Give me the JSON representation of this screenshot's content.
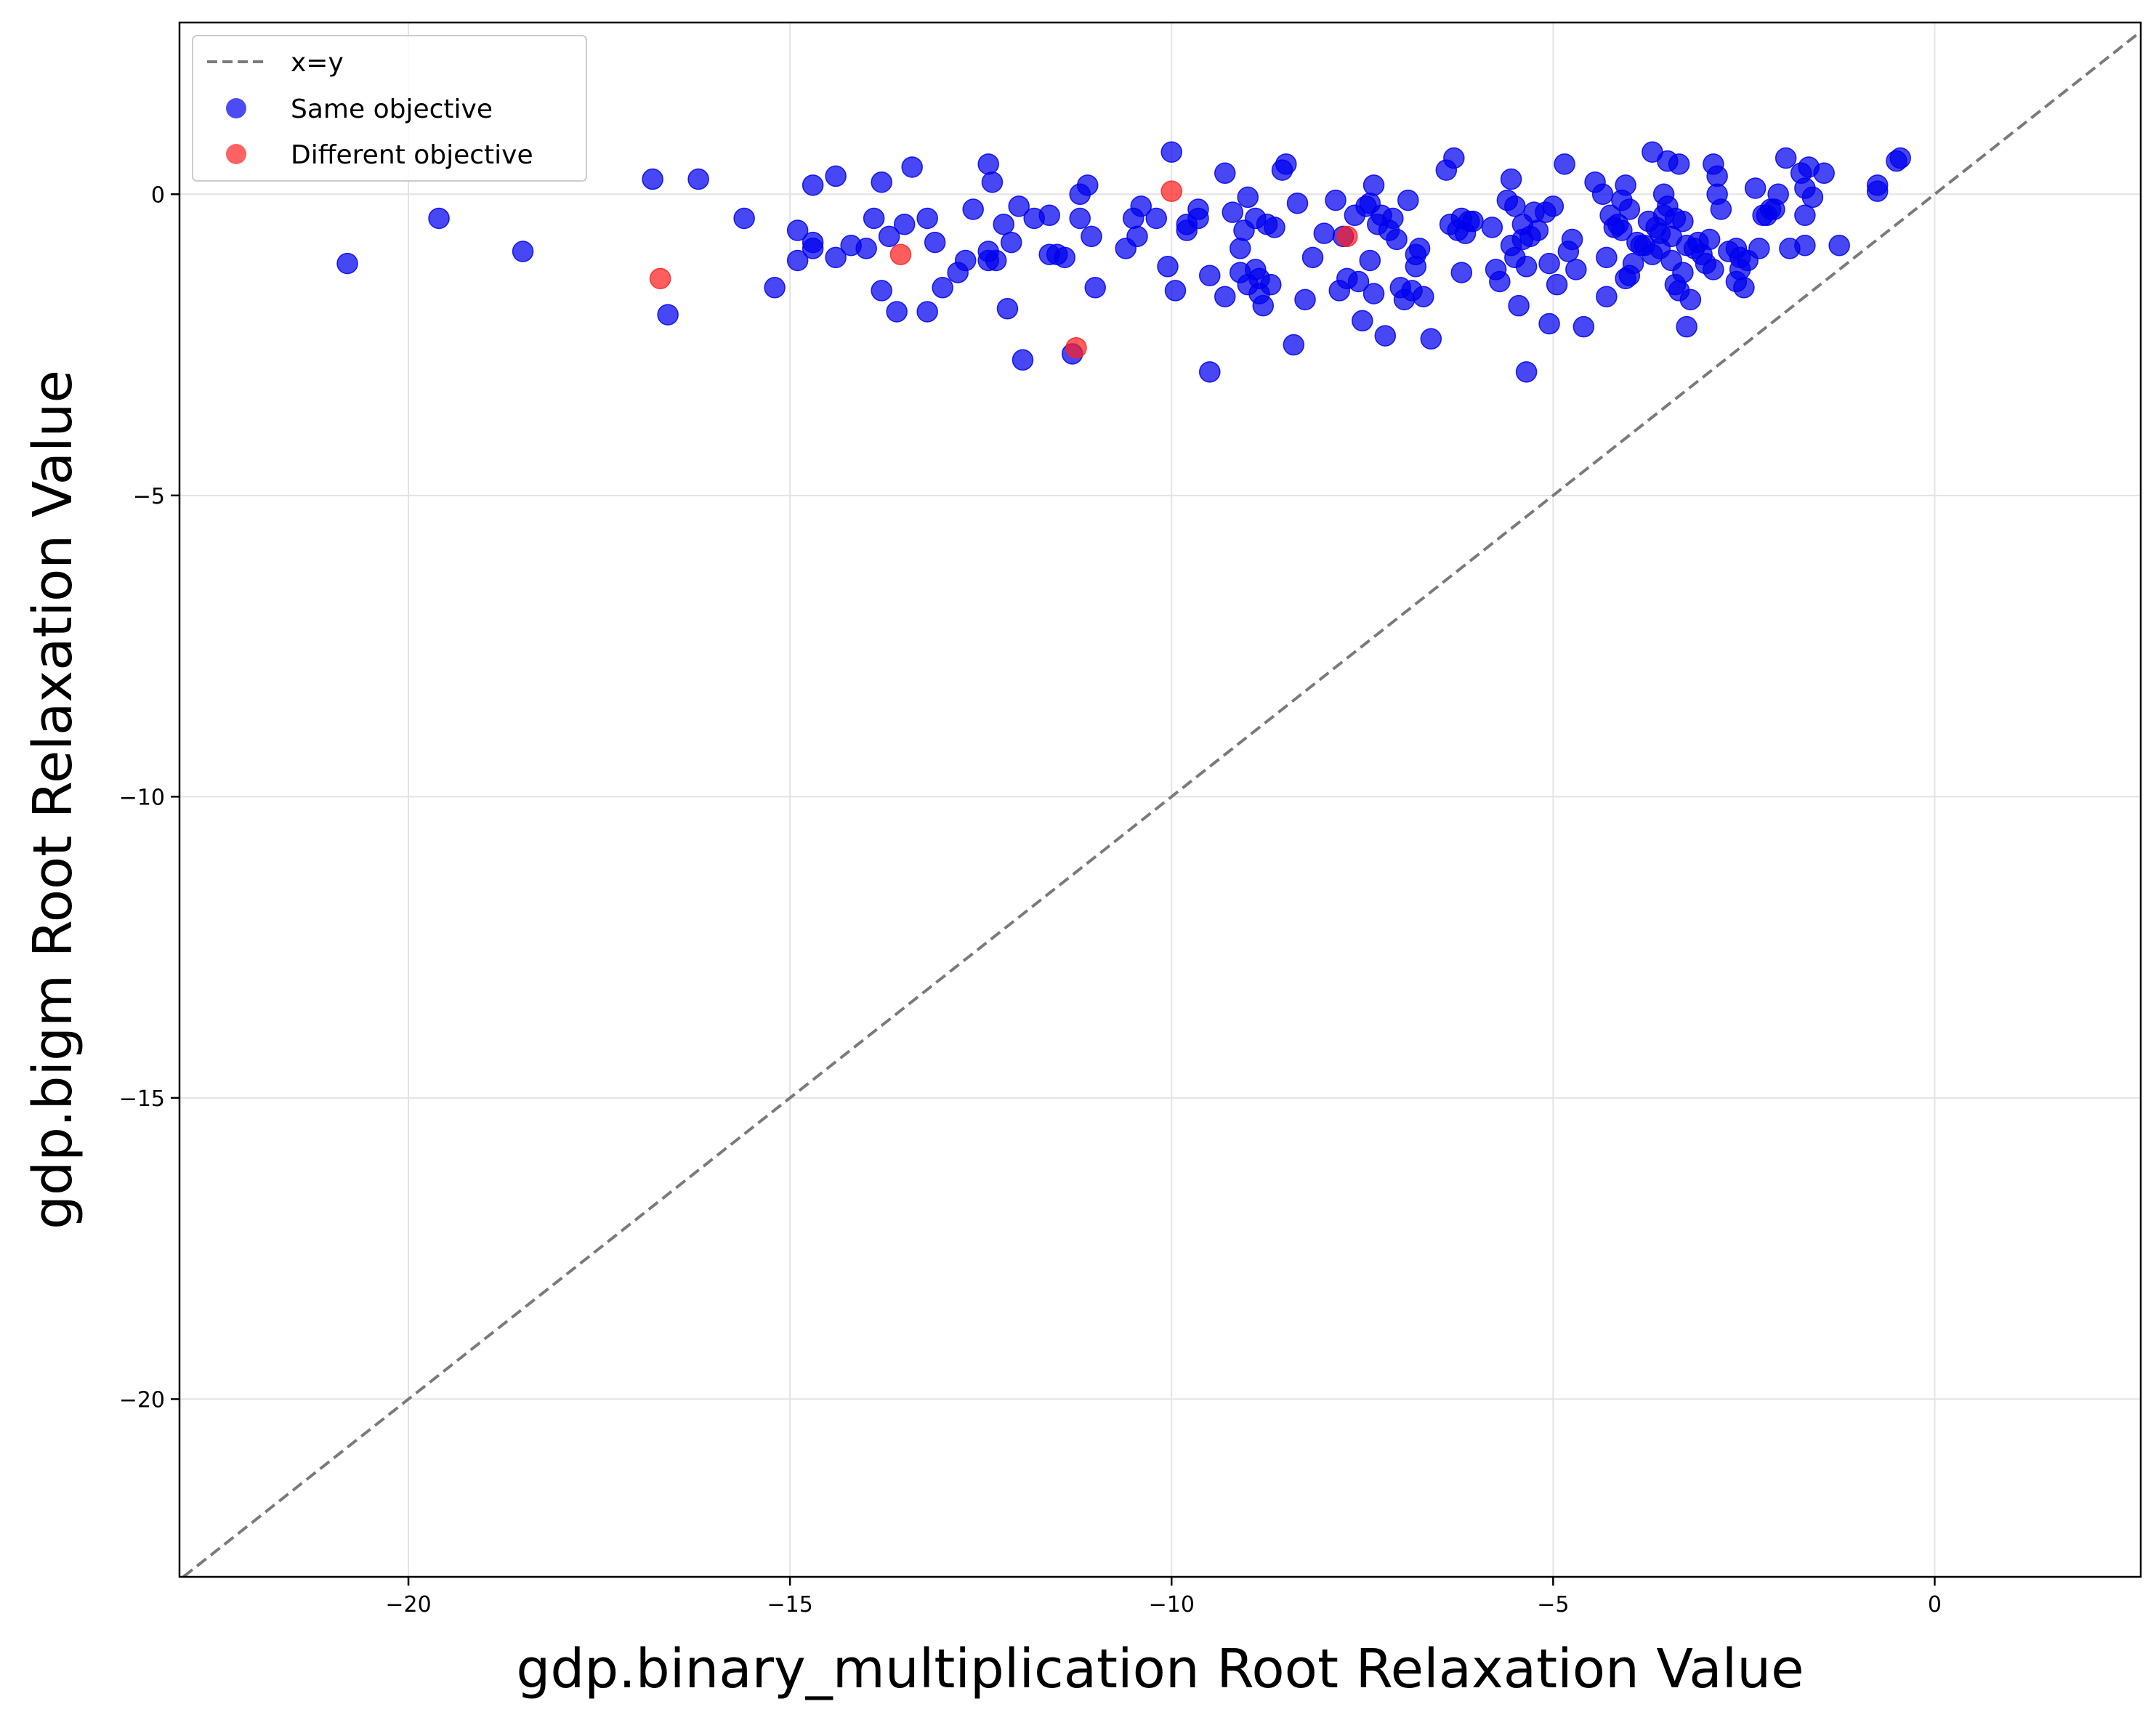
{
  "chart_data": {
    "type": "scatter",
    "title": "",
    "xlabel": "gdp.binary_multiplication Root Relaxation Value",
    "ylabel": "gdp.bigm Root Relaxation Value",
    "xlim": [
      -23.0,
      2.7
    ],
    "ylim": [
      -22.95,
      2.85
    ],
    "xticks": [
      -20,
      -15,
      -10,
      -5,
      0
    ],
    "yticks": [
      0,
      -5,
      -10,
      -15,
      -20
    ],
    "xtick_labels": [
      "−20",
      "−15",
      "−10",
      "−5",
      "0"
    ],
    "ytick_labels": [
      "0",
      "−5",
      "−10",
      "−15",
      "−20"
    ],
    "grid": true,
    "legend_position": "top-left",
    "reference_line": {
      "name": "x=y",
      "color": "#7a7a7a",
      "style": "dashed"
    },
    "series": [
      {
        "name": "Same objective",
        "color": "#0000ee",
        "points": [
          [
            -20.8,
            -1.15
          ],
          [
            -19.6,
            -0.4
          ],
          [
            -18.5,
            -0.95
          ],
          [
            -16.8,
            0.25
          ],
          [
            -16.2,
            0.25
          ],
          [
            -16.6,
            -2.0
          ],
          [
            -15.6,
            -0.4
          ],
          [
            -15.2,
            -1.55
          ],
          [
            -14.9,
            -0.6
          ],
          [
            -14.9,
            -1.1
          ],
          [
            -14.7,
            0.15
          ],
          [
            -14.7,
            -0.8
          ],
          [
            -14.7,
            -0.9
          ],
          [
            -14.4,
            0.3
          ],
          [
            -14.4,
            -1.05
          ],
          [
            -14.2,
            -0.85
          ],
          [
            -14.0,
            -0.9
          ],
          [
            -13.9,
            -0.4
          ],
          [
            -13.8,
            0.2
          ],
          [
            -13.8,
            -1.6
          ],
          [
            -13.7,
            -0.7
          ],
          [
            -13.6,
            -1.95
          ],
          [
            -13.5,
            -0.5
          ],
          [
            -13.4,
            0.45
          ],
          [
            -13.2,
            -0.4
          ],
          [
            -13.2,
            -1.95
          ],
          [
            -13.1,
            -0.8
          ],
          [
            -13.0,
            -1.55
          ],
          [
            -12.8,
            -1.3
          ],
          [
            -12.7,
            -1.1
          ],
          [
            -12.6,
            -0.25
          ],
          [
            -12.4,
            0.5
          ],
          [
            -12.4,
            -1.1
          ],
          [
            -12.4,
            -0.95
          ],
          [
            -12.35,
            0.2
          ],
          [
            -12.3,
            -1.1
          ],
          [
            -12.2,
            -0.5
          ],
          [
            -12.15,
            -1.9
          ],
          [
            -12.1,
            -0.8
          ],
          [
            -12.0,
            -0.2
          ],
          [
            -11.95,
            -2.75
          ],
          [
            -11.8,
            -0.4
          ],
          [
            -11.6,
            -1.0
          ],
          [
            -11.6,
            -0.35
          ],
          [
            -11.5,
            -1.0
          ],
          [
            -11.4,
            -1.05
          ],
          [
            -11.3,
            -2.65
          ],
          [
            -11.2,
            -0.4
          ],
          [
            -11.2,
            0.0
          ],
          [
            -11.1,
            0.15
          ],
          [
            -11.05,
            -0.7
          ],
          [
            -11.0,
            -1.55
          ],
          [
            -10.6,
            -0.9
          ],
          [
            -10.5,
            -0.4
          ],
          [
            -10.45,
            -0.7
          ],
          [
            -10.4,
            -0.2
          ],
          [
            -10.2,
            -0.4
          ],
          [
            -10.0,
            0.7
          ],
          [
            -10.05,
            -1.2
          ],
          [
            -9.95,
            -1.6
          ],
          [
            -9.8,
            -0.5
          ],
          [
            -9.8,
            -0.6
          ],
          [
            -9.65,
            -0.25
          ],
          [
            -9.65,
            -0.4
          ],
          [
            -9.5,
            -2.95
          ],
          [
            -9.5,
            -1.35
          ],
          [
            -9.3,
            0.35
          ],
          [
            -9.3,
            -1.7
          ],
          [
            -9.2,
            -0.3
          ],
          [
            -9.1,
            -0.9
          ],
          [
            -9.1,
            -1.3
          ],
          [
            -9.05,
            -0.6
          ],
          [
            -9.0,
            -0.05
          ],
          [
            -9.0,
            -1.5
          ],
          [
            -8.9,
            -0.4
          ],
          [
            -8.9,
            -1.25
          ],
          [
            -8.85,
            -1.4
          ],
          [
            -8.85,
            -1.65
          ],
          [
            -8.8,
            -1.85
          ],
          [
            -8.75,
            -0.5
          ],
          [
            -8.7,
            -1.5
          ],
          [
            -8.65,
            -0.55
          ],
          [
            -8.55,
            0.4
          ],
          [
            -8.5,
            0.5
          ],
          [
            -8.4,
            -2.5
          ],
          [
            -8.35,
            -0.15
          ],
          [
            -8.25,
            -1.75
          ],
          [
            -8.15,
            -1.05
          ],
          [
            -8.0,
            -0.65
          ],
          [
            -7.85,
            -0.1
          ],
          [
            -7.8,
            -1.6
          ],
          [
            -7.75,
            -0.7
          ],
          [
            -7.7,
            -1.4
          ],
          [
            -7.6,
            -0.35
          ],
          [
            -7.55,
            -1.45
          ],
          [
            -7.5,
            -2.1
          ],
          [
            -7.45,
            -0.2
          ],
          [
            -7.4,
            -1.1
          ],
          [
            -7.4,
            -0.15
          ],
          [
            -7.35,
            0.15
          ],
          [
            -7.35,
            -1.65
          ],
          [
            -7.3,
            -0.5
          ],
          [
            -7.25,
            -0.35
          ],
          [
            -7.2,
            -2.35
          ],
          [
            -7.15,
            -0.6
          ],
          [
            -7.1,
            -0.4
          ],
          [
            -7.05,
            -0.75
          ],
          [
            -7.0,
            -1.55
          ],
          [
            -6.95,
            -1.75
          ],
          [
            -6.9,
            -0.1
          ],
          [
            -6.85,
            -1.6
          ],
          [
            -6.8,
            -1.0
          ],
          [
            -6.8,
            -1.2
          ],
          [
            -6.75,
            -0.9
          ],
          [
            -6.7,
            -1.7
          ],
          [
            -6.6,
            -2.4
          ],
          [
            -6.4,
            0.4
          ],
          [
            -6.35,
            -0.5
          ],
          [
            -6.3,
            0.6
          ],
          [
            -6.25,
            -0.6
          ],
          [
            -6.2,
            -1.3
          ],
          [
            -6.2,
            -0.4
          ],
          [
            -6.15,
            -0.65
          ],
          [
            -6.1,
            -0.45
          ],
          [
            -6.05,
            -0.45
          ],
          [
            -5.8,
            -0.55
          ],
          [
            -5.75,
            -1.25
          ],
          [
            -5.7,
            -1.45
          ],
          [
            -5.6,
            -0.1
          ],
          [
            -5.55,
            -0.85
          ],
          [
            -5.55,
            0.25
          ],
          [
            -5.5,
            -0.2
          ],
          [
            -5.5,
            -1.05
          ],
          [
            -5.45,
            -1.85
          ],
          [
            -5.4,
            -0.5
          ],
          [
            -5.4,
            -0.75
          ],
          [
            -5.35,
            -2.95
          ],
          [
            -5.35,
            -1.2
          ],
          [
            -5.3,
            -0.7
          ],
          [
            -5.25,
            -0.3
          ],
          [
            -5.2,
            -0.6
          ],
          [
            -5.1,
            -0.3
          ],
          [
            -5.05,
            -2.15
          ],
          [
            -5.05,
            -1.15
          ],
          [
            -5.0,
            -0.2
          ],
          [
            -4.95,
            -1.5
          ],
          [
            -4.85,
            0.5
          ],
          [
            -4.8,
            -0.95
          ],
          [
            -4.75,
            -0.75
          ],
          [
            -4.7,
            -1.25
          ],
          [
            -4.6,
            -2.2
          ],
          [
            -4.45,
            0.2
          ],
          [
            -4.35,
            0.0
          ],
          [
            -4.3,
            -1.05
          ],
          [
            -4.3,
            -1.7
          ],
          [
            -4.25,
            -0.35
          ],
          [
            -4.2,
            -0.55
          ],
          [
            -4.15,
            -0.5
          ],
          [
            -4.1,
            -0.1
          ],
          [
            -4.1,
            -0.6
          ],
          [
            -4.05,
            0.15
          ],
          [
            -4.05,
            -1.4
          ],
          [
            -4.0,
            -1.35
          ],
          [
            -4.0,
            -0.25
          ],
          [
            -3.95,
            -1.15
          ],
          [
            -3.9,
            -0.8
          ],
          [
            -3.85,
            -0.85
          ],
          [
            -3.8,
            -0.85
          ],
          [
            -3.75,
            -0.45
          ],
          [
            -3.7,
            0.7
          ],
          [
            -3.7,
            -1.0
          ],
          [
            -3.65,
            -0.55
          ],
          [
            -3.6,
            -0.9
          ],
          [
            -3.6,
            -0.65
          ],
          [
            -3.55,
            0.0
          ],
          [
            -3.55,
            -0.35
          ],
          [
            -3.5,
            0.55
          ],
          [
            -3.5,
            -0.2
          ],
          [
            -3.45,
            -0.7
          ],
          [
            -3.45,
            -1.1
          ],
          [
            -3.4,
            -0.4
          ],
          [
            -3.4,
            -1.5
          ],
          [
            -3.35,
            0.5
          ],
          [
            -3.35,
            -1.6
          ],
          [
            -3.3,
            -1.3
          ],
          [
            -3.3,
            -0.45
          ],
          [
            -3.25,
            -2.2
          ],
          [
            -3.25,
            -0.85
          ],
          [
            -3.2,
            -1.75
          ],
          [
            -3.15,
            -0.9
          ],
          [
            -3.1,
            -0.8
          ],
          [
            -3.05,
            -1.0
          ],
          [
            -3.0,
            -1.15
          ],
          [
            -2.95,
            -0.75
          ],
          [
            -2.9,
            0.5
          ],
          [
            -2.9,
            -1.25
          ],
          [
            -2.85,
            0.0
          ],
          [
            -2.85,
            0.3
          ],
          [
            -2.8,
            -0.25
          ],
          [
            -2.7,
            -0.95
          ],
          [
            -2.6,
            -1.45
          ],
          [
            -2.6,
            -0.9
          ],
          [
            -2.55,
            -1.05
          ],
          [
            -2.55,
            -1.25
          ],
          [
            -2.5,
            -1.55
          ],
          [
            -2.45,
            -1.1
          ],
          [
            -2.35,
            0.1
          ],
          [
            -2.3,
            -0.9
          ],
          [
            -2.25,
            -0.35
          ],
          [
            -2.2,
            -0.35
          ],
          [
            -2.15,
            -0.25
          ],
          [
            -2.1,
            -0.25
          ],
          [
            -2.05,
            0.0
          ],
          [
            -1.95,
            0.6
          ],
          [
            -1.9,
            -0.9
          ],
          [
            -1.75,
            0.35
          ],
          [
            -1.7,
            -0.85
          ],
          [
            -1.7,
            -0.35
          ],
          [
            -1.7,
            0.1
          ],
          [
            -1.65,
            0.45
          ],
          [
            -1.6,
            -0.05
          ],
          [
            -1.45,
            0.35
          ],
          [
            -1.25,
            -0.85
          ],
          [
            -0.75,
            0.05
          ],
          [
            -0.75,
            0.15
          ],
          [
            -0.5,
            0.55
          ],
          [
            -0.45,
            0.6
          ]
        ]
      },
      {
        "name": "Different objective",
        "color": "#ff2020",
        "points": [
          [
            -16.7,
            -1.4
          ],
          [
            -13.55,
            -1.0
          ],
          [
            -11.25,
            -2.55
          ],
          [
            -10.0,
            0.05
          ],
          [
            -7.7,
            -0.7
          ]
        ]
      }
    ]
  }
}
